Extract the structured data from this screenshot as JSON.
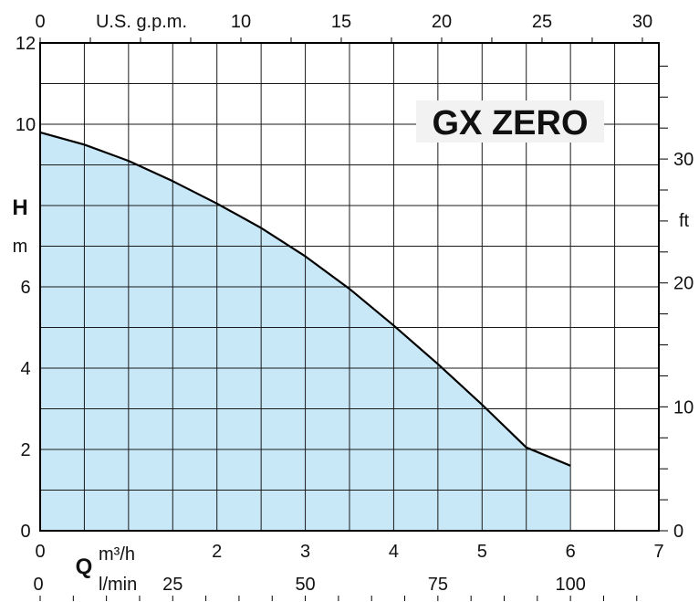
{
  "chart_data": {
    "type": "area",
    "title": "GX ZERO",
    "x": [
      0,
      0.5,
      1,
      1.5,
      2,
      2.5,
      3,
      3.5,
      4,
      4.5,
      5,
      5.5,
      6
    ],
    "series": [
      {
        "values": [
          9.8,
          9.5,
          9.1,
          8.6,
          8.05,
          7.45,
          6.75,
          5.95,
          5.05,
          4.1,
          3.1,
          2.05,
          1.6
        ]
      }
    ],
    "xlim": [
      0,
      7
    ],
    "ylim": [
      0,
      12
    ],
    "grid": true,
    "fill_color": "#c8e8f8",
    "line_color": "#000000",
    "axes": {
      "bottom_primary": {
        "label_prefix": "Q",
        "label_unit": "m³/h",
        "ticks": [
          0,
          2,
          3,
          4,
          5,
          6,
          7
        ]
      },
      "bottom_secondary": {
        "label_unit": "l/min",
        "ticks": [
          0,
          25,
          50,
          75,
          100
        ]
      },
      "top": {
        "label_unit": "U.S. g.p.m.",
        "ticks": [
          0,
          10,
          15,
          20,
          25,
          30
        ]
      },
      "left": {
        "label_main": "H",
        "label_unit": "m",
        "ticks": [
          0,
          2,
          4,
          6,
          10,
          12
        ]
      },
      "right": {
        "label_unit": "ft",
        "ticks": [
          0,
          10,
          20,
          30
        ]
      }
    }
  }
}
